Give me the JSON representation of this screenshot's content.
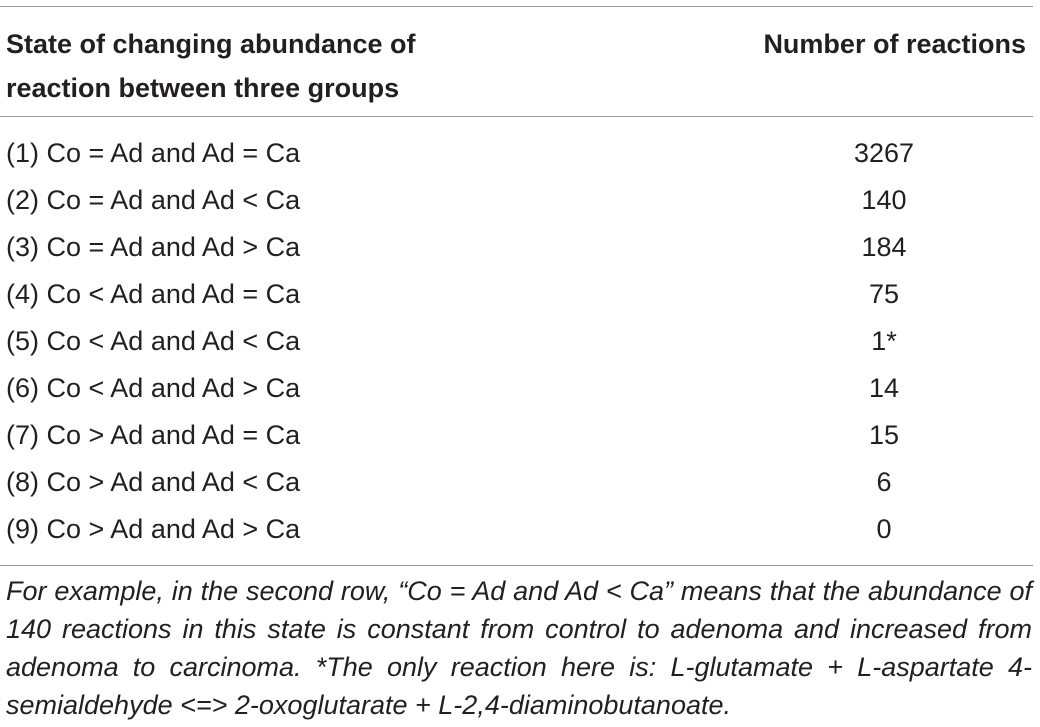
{
  "table": {
    "header": {
      "state_line1": "State of changing abundance of",
      "state_line2": "reaction between three groups",
      "number": "Number of reactions"
    },
    "rows": [
      {
        "state": "(1) Co = Ad and Ad = Ca",
        "count": "3267"
      },
      {
        "state": "(2) Co = Ad and Ad < Ca",
        "count": "140"
      },
      {
        "state": "(3) Co = Ad and Ad > Ca",
        "count": "184"
      },
      {
        "state": "(4) Co < Ad and Ad = Ca",
        "count": "75"
      },
      {
        "state": "(5) Co < Ad and Ad < Ca",
        "count": "1*"
      },
      {
        "state": "(6) Co < Ad and Ad > Ca",
        "count": "14"
      },
      {
        "state": "(7) Co > Ad and Ad = Ca",
        "count": "15"
      },
      {
        "state": "(8) Co > Ad and Ad < Ca",
        "count": "6"
      },
      {
        "state": "(9) Co > Ad and Ad > Ca",
        "count": "0"
      }
    ],
    "footnote": "For example, in the second row, “Co = Ad and Ad < Ca” means that the abundance of 140 reactions in this state is constant from control to adenoma and increased from adenoma to carcinoma. *The only reaction here is: L-glutamate + L-aspartate 4-semialdehyde <=> 2-oxoglutarate + L-2,4-diaminobutanoate."
  }
}
